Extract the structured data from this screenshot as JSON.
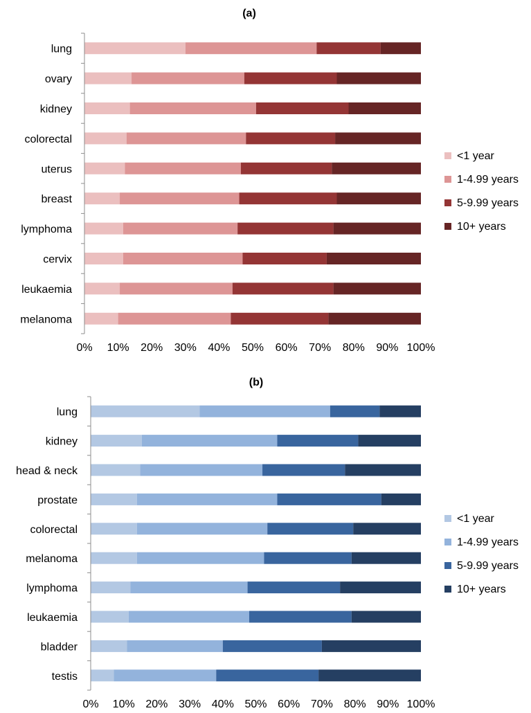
{
  "chart_data": [
    {
      "type": "bar",
      "orientation": "horizontal",
      "stacked": true,
      "percent": true,
      "title": "(a)",
      "categories": [
        "lung",
        "ovary",
        "kidney",
        "colorectal",
        "uterus",
        "breast",
        "lymphoma",
        "cervix",
        "leukaemia",
        "melanoma"
      ],
      "series": [
        {
          "name": "<1 year",
          "color": "#ebbfbf",
          "values": [
            30,
            14,
            13.5,
            12.5,
            12,
            10.5,
            11.5,
            11.5,
            10.5,
            10
          ]
        },
        {
          "name": "1-4.99 years",
          "color": "#dd9595",
          "values": [
            39,
            33.5,
            37.5,
            35.5,
            34.5,
            35.5,
            34,
            35.5,
            33.5,
            33.5
          ]
        },
        {
          "name": "5-9.99 years",
          "color": "#943535",
          "values": [
            19,
            27.5,
            27.5,
            26.5,
            27,
            29,
            28.5,
            25,
            30,
            29
          ]
        },
        {
          "name": "10+ years",
          "color": "#662525",
          "values": [
            12,
            25,
            21.5,
            25.5,
            26.5,
            25,
            26,
            28,
            26,
            27.5
          ]
        }
      ],
      "xticks": [
        "0%",
        "10%",
        "20%",
        "30%",
        "40%",
        "50%",
        "60%",
        "70%",
        "80%",
        "90%",
        "100%"
      ],
      "xlim": [
        0,
        100
      ],
      "legend_position": "right"
    },
    {
      "type": "bar",
      "orientation": "horizontal",
      "stacked": true,
      "percent": true,
      "title": "(b)",
      "categories": [
        "lung",
        "kidney",
        "head & neck",
        "prostate",
        "colorectal",
        "melanoma",
        "lymphoma",
        "leukaemia",
        "bladder",
        "testis"
      ],
      "series": [
        {
          "name": "<1 year",
          "color": "#b3c8e3",
          "values": [
            33,
            15.5,
            15,
            14,
            14,
            14,
            12,
            11.5,
            11,
            7
          ]
        },
        {
          "name": "1-4.99 years",
          "color": "#93b3dc",
          "values": [
            39.5,
            41,
            37,
            42.5,
            39.5,
            38.5,
            35.5,
            36.5,
            29,
            31
          ]
        },
        {
          "name": "5-9.99 years",
          "color": "#39659e",
          "values": [
            15,
            24.5,
            25,
            31.5,
            26,
            26.5,
            28,
            31,
            30,
            31
          ]
        },
        {
          "name": "10+ years",
          "color": "#253f62",
          "values": [
            12.5,
            19,
            23,
            12,
            20.5,
            21,
            24.5,
            21,
            30,
            31
          ]
        }
      ],
      "xticks": [
        "0%",
        "10%",
        "20%",
        "30%",
        "40%",
        "50%",
        "60%",
        "70%",
        "80%",
        "90%",
        "100%"
      ],
      "xlim": [
        0,
        100
      ],
      "legend_position": "right"
    }
  ]
}
